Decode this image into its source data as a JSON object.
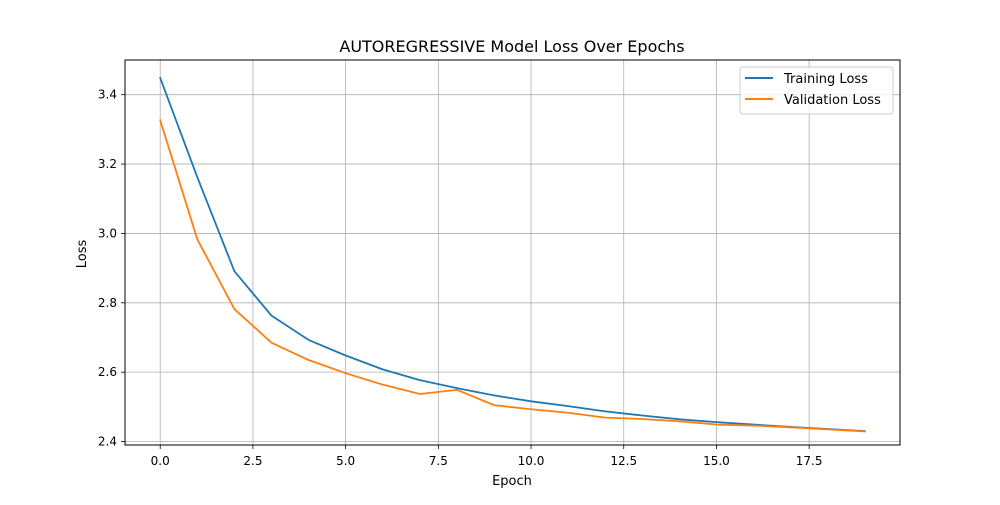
{
  "chart_data": {
    "type": "line",
    "title": "AUTOREGRESSIVE Model Loss Over Epochs",
    "xlabel": "Epoch",
    "ylabel": "Loss",
    "xlim": [
      -0.95,
      19.95
    ],
    "ylim": [
      2.39,
      3.5
    ],
    "xticks": [
      0.0,
      2.5,
      5.0,
      7.5,
      10.0,
      12.5,
      15.0,
      17.5
    ],
    "xtick_labels": [
      "0.0",
      "2.5",
      "5.0",
      "7.5",
      "10.0",
      "12.5",
      "15.0",
      "17.5"
    ],
    "yticks": [
      2.4,
      2.6,
      2.8,
      3.0,
      3.2,
      3.4
    ],
    "ytick_labels": [
      "2.4",
      "2.6",
      "2.8",
      "3.0",
      "3.2",
      "3.4"
    ],
    "grid": true,
    "legend_position": "top-right",
    "x": [
      0,
      1,
      2,
      3,
      4,
      5,
      6,
      7,
      8,
      9,
      10,
      11,
      12,
      13,
      14,
      15,
      16,
      17,
      18,
      19
    ],
    "series": [
      {
        "name": "Training Loss",
        "color": "#1f77b4",
        "values": [
          3.448,
          3.162,
          2.891,
          2.763,
          2.693,
          2.648,
          2.608,
          2.577,
          2.554,
          2.533,
          2.516,
          2.502,
          2.487,
          2.475,
          2.464,
          2.456,
          2.449,
          2.442,
          2.436,
          2.43
        ]
      },
      {
        "name": "Validation Loss",
        "color": "#ff7f0e",
        "values": [
          3.326,
          2.983,
          2.782,
          2.685,
          2.635,
          2.597,
          2.564,
          2.537,
          2.549,
          2.505,
          2.493,
          2.483,
          2.469,
          2.465,
          2.458,
          2.449,
          2.446,
          2.441,
          2.435,
          2.429
        ]
      }
    ]
  }
}
